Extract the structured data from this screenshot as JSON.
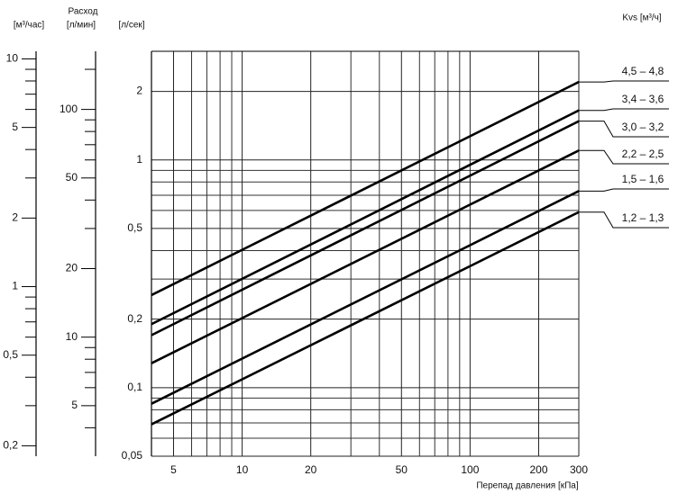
{
  "chart_data": {
    "type": "line",
    "x_label": "Перепад давления [кПа]",
    "y_label": "[л/сек]",
    "flow_label": "Расход",
    "legend_title": "Kvs [м³/ч]",
    "log_x": true,
    "log_y": true,
    "grid": true,
    "legend": "right",
    "xlim": [
      4,
      300
    ],
    "xticks": [
      5,
      10,
      20,
      50,
      100,
      200,
      300
    ],
    "x_minor_ticks": [
      6,
      7,
      8,
      9,
      30,
      40,
      60,
      70,
      80,
      90
    ],
    "ylim": [
      0.05,
      3
    ],
    "yticks": [
      {
        "value": 0.05,
        "label": "0,05"
      },
      {
        "value": 0.1,
        "label": "0,1"
      },
      {
        "value": 0.2,
        "label": "0,2"
      },
      {
        "value": 0.5,
        "label": "0,5"
      },
      1,
      2
    ],
    "y_minor_ticks": [
      0.06,
      0.07,
      0.08,
      0.09,
      0.3,
      0.4,
      0.6,
      0.7,
      0.8,
      0.9
    ],
    "left_axes": [
      {
        "label": "[м³/час]",
        "ylim": [
          0.18,
          10.8
        ],
        "yticks": [
          {
            "value": 0.2,
            "label": "0,2"
          },
          {
            "value": 0.5,
            "label": "0,5"
          },
          1,
          2,
          5,
          10
        ],
        "minor_ticks": [
          0.3,
          0.4,
          0.6,
          0.7,
          0.8,
          0.9,
          3,
          4,
          6,
          7,
          8,
          9
        ]
      },
      {
        "label": "[л/мин]",
        "ylim": [
          3,
          180
        ],
        "yticks": [
          5,
          10,
          20,
          50,
          100
        ],
        "minor_ticks": [
          4,
          6,
          7,
          8,
          9,
          30,
          40,
          60,
          70,
          80,
          90,
          150
        ]
      }
    ],
    "x": [
      4,
      300
    ],
    "series": [
      {
        "name": "4,5 – 4,8",
        "color": "#000000",
        "values": [
          0.255,
          2.2
        ]
      },
      {
        "name": "3,4 – 3,6",
        "color": "#000000",
        "values": [
          0.19,
          1.65
        ]
      },
      {
        "name": "3,0 – 3,2",
        "color": "#000000",
        "values": [
          0.17,
          1.48
        ]
      },
      {
        "name": "2,2 – 2,5",
        "color": "#000000",
        "values": [
          0.128,
          1.1
        ]
      },
      {
        "name": "1,5 – 1,6",
        "color": "#000000",
        "values": [
          0.085,
          0.73
        ]
      },
      {
        "name": "1,2 – 1,3",
        "color": "#000000",
        "values": [
          0.069,
          0.59
        ]
      }
    ]
  }
}
